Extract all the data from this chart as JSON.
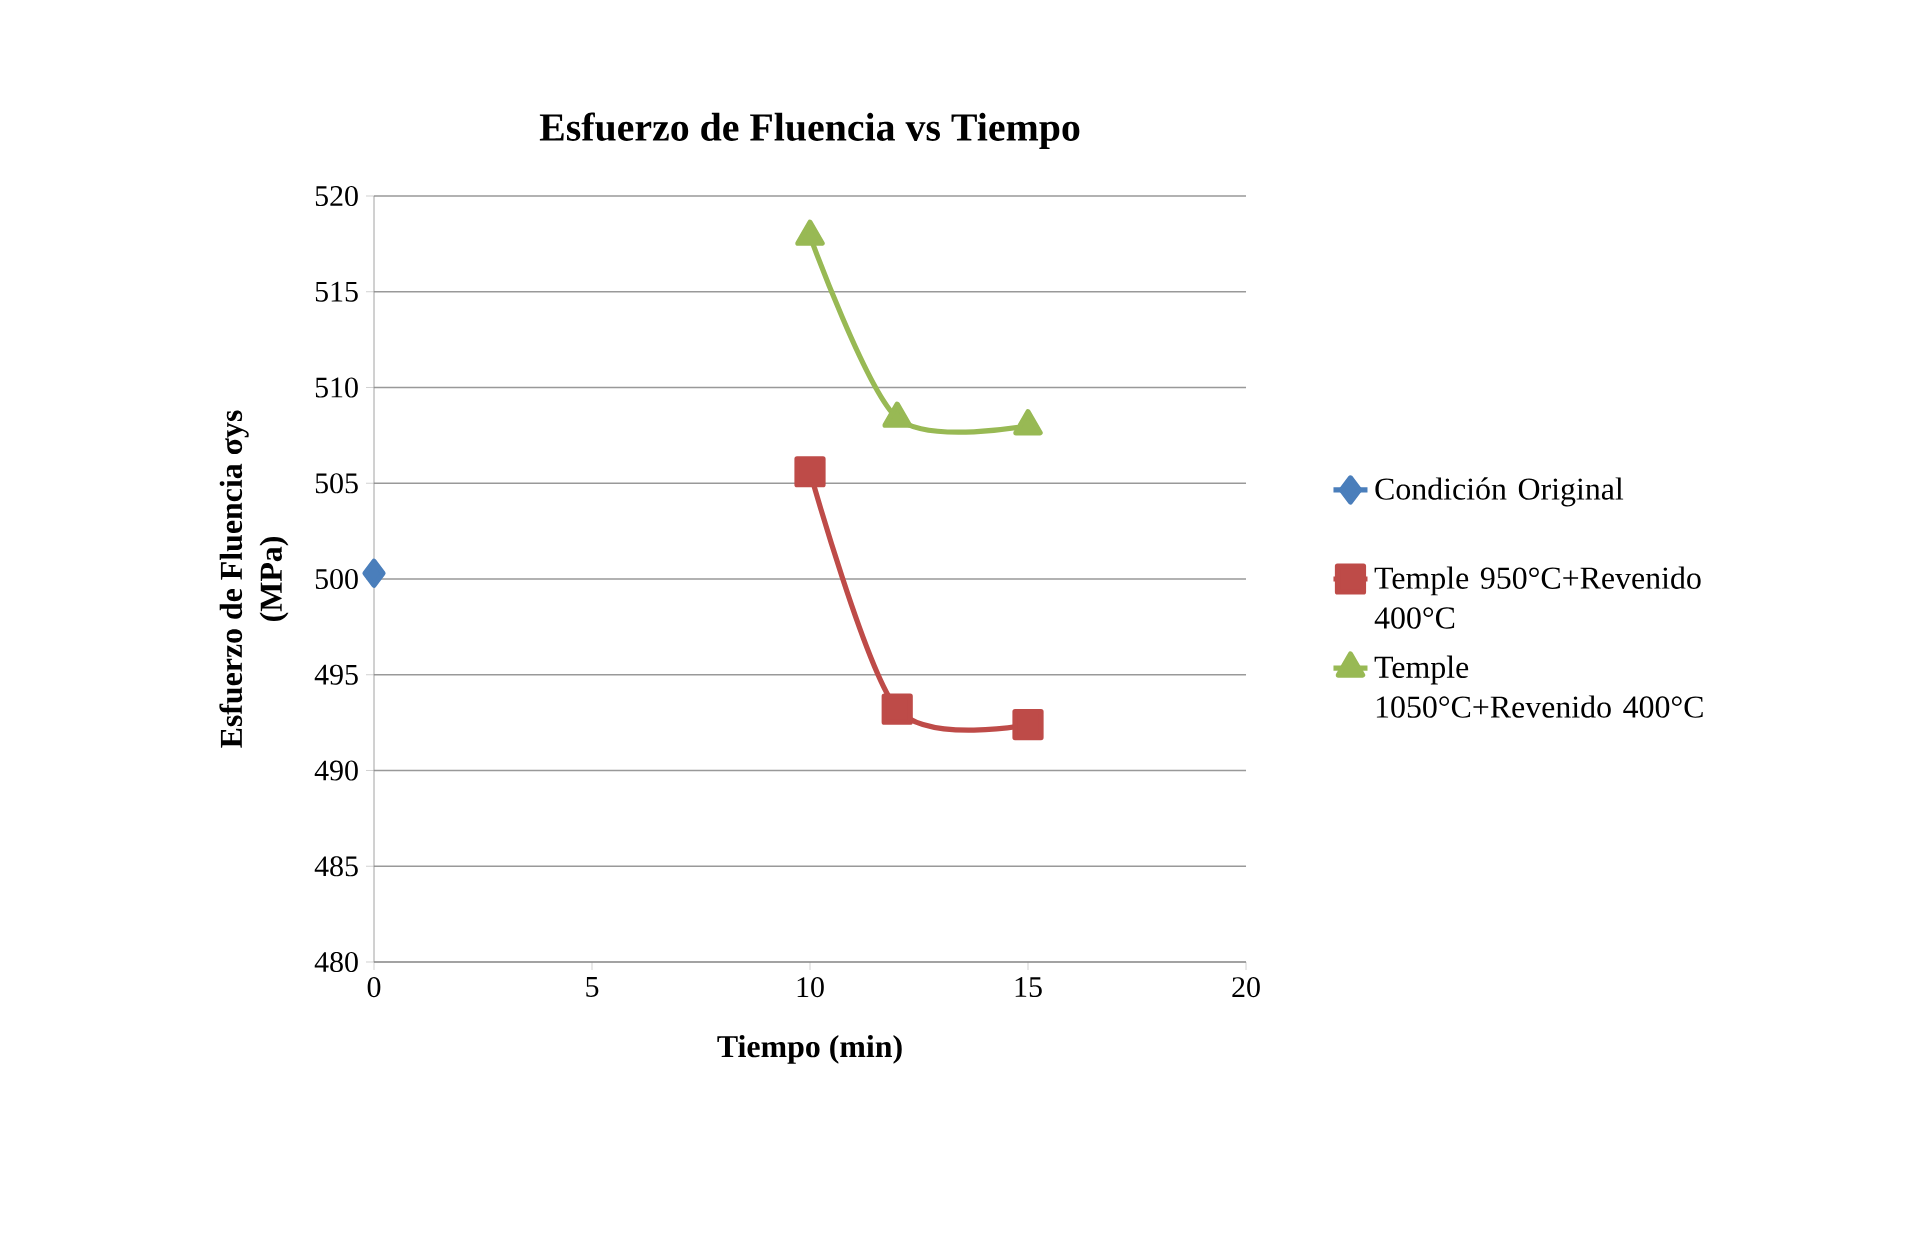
{
  "chart_data": {
    "type": "line",
    "title": "Esfuerzo de Fluencia vs Tiempo",
    "xlabel": "Tiempo (min)",
    "ylabel": "Esfuerzo de Fluencia σys (MPa)",
    "xlim": [
      0,
      20
    ],
    "xticks": [
      0,
      5,
      10,
      15,
      20
    ],
    "ylim": [
      480,
      520
    ],
    "yticks": [
      480,
      485,
      490,
      495,
      500,
      505,
      510,
      515,
      520
    ],
    "grid": "y",
    "legend": "right",
    "series": [
      {
        "name": "Condición Original",
        "color": "#4a7ebb",
        "marker": "diamond",
        "x": [
          0
        ],
        "values": [
          500.3
        ]
      },
      {
        "name": "Temple 950°C+Revenido 400°C",
        "color": "#be4b48",
        "marker": "square",
        "x": [
          10,
          12,
          15
        ],
        "values": [
          505.6,
          493.2,
          492.4
        ]
      },
      {
        "name": "Temple 1050°C+Revenido 400°C",
        "color": "#98b954",
        "marker": "triangle",
        "x": [
          10,
          12,
          15
        ],
        "values": [
          517.9,
          508.4,
          508.0
        ]
      }
    ]
  }
}
